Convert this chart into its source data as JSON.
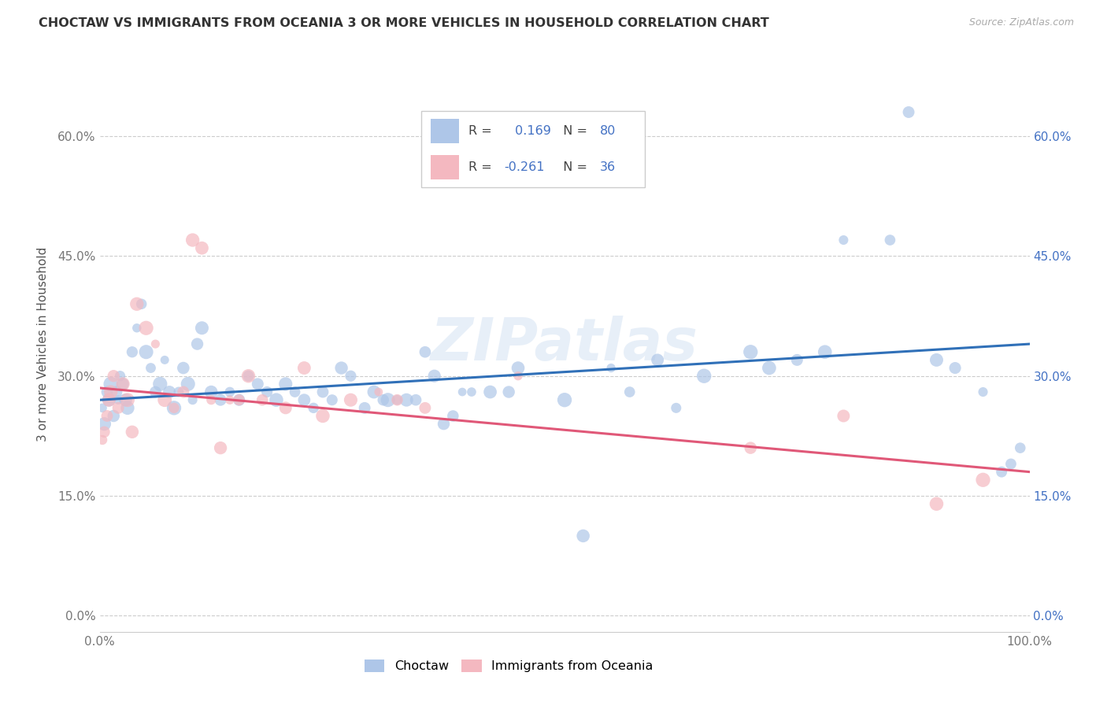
{
  "title": "CHOCTAW VS IMMIGRANTS FROM OCEANIA 3 OR MORE VEHICLES IN HOUSEHOLD CORRELATION CHART",
  "source": "Source: ZipAtlas.com",
  "ylabel": "3 or more Vehicles in Household",
  "xlim": [
    0,
    100
  ],
  "ylim": [
    -2,
    70
  ],
  "ytick_vals": [
    0,
    15,
    30,
    45,
    60
  ],
  "ytick_labels": [
    "0.0%",
    "15.0%",
    "30.0%",
    "45.0%",
    "60.0%"
  ],
  "xtick_vals": [
    0,
    10,
    20,
    30,
    40,
    50,
    60,
    70,
    80,
    90,
    100
  ],
  "xtick_labels": [
    "0.0%",
    "",
    "",
    "",
    "",
    "",
    "",
    "",
    "",
    "",
    "100.0%"
  ],
  "blue_R": 0.169,
  "blue_N": 80,
  "pink_R": -0.261,
  "pink_N": 36,
  "blue_color": "#aec6e8",
  "pink_color": "#f4b8c0",
  "blue_line_color": "#3070b8",
  "pink_line_color": "#e05878",
  "legend_color": "#4472c4",
  "blue_trend_start": 27.0,
  "blue_trend_end": 34.0,
  "pink_trend_start": 28.5,
  "pink_trend_end": 18.0,
  "watermark": "ZIPatlas",
  "blue_scatter_x": [
    0.3,
    0.5,
    0.8,
    1.0,
    1.2,
    1.5,
    1.8,
    2.0,
    2.2,
    2.5,
    2.8,
    3.0,
    3.5,
    4.0,
    4.5,
    5.0,
    5.5,
    6.0,
    6.5,
    7.0,
    7.5,
    8.0,
    8.5,
    9.0,
    9.5,
    10.0,
    10.5,
    11.0,
    12.0,
    13.0,
    14.0,
    15.0,
    16.0,
    17.0,
    18.0,
    19.0,
    20.0,
    21.0,
    22.0,
    23.0,
    24.0,
    25.0,
    26.0,
    27.0,
    28.5,
    29.5,
    30.5,
    31.0,
    32.0,
    33.0,
    34.0,
    35.0,
    36.0,
    37.0,
    38.0,
    39.0,
    40.0,
    42.0,
    44.0,
    45.0,
    50.0,
    52.0,
    55.0,
    57.0,
    60.0,
    62.0,
    65.0,
    70.0,
    72.0,
    75.0,
    78.0,
    80.0,
    85.0,
    87.0,
    90.0,
    92.0,
    95.0,
    97.0,
    98.0,
    99.0
  ],
  "blue_scatter_y": [
    26,
    24,
    28,
    27,
    29,
    25,
    28,
    27,
    30,
    29,
    27,
    26,
    33,
    36,
    39,
    33,
    31,
    28,
    29,
    32,
    28,
    26,
    28,
    31,
    29,
    27,
    34,
    36,
    28,
    27,
    28,
    27,
    30,
    29,
    28,
    27,
    29,
    28,
    27,
    26,
    28,
    27,
    31,
    30,
    26,
    28,
    27,
    27,
    27,
    27,
    27,
    33,
    30,
    24,
    25,
    28,
    28,
    28,
    28,
    31,
    27,
    10,
    31,
    28,
    32,
    26,
    30,
    33,
    31,
    32,
    33,
    47,
    47,
    63,
    32,
    31,
    28,
    18,
    19,
    21
  ],
  "pink_scatter_x": [
    0.3,
    0.5,
    0.8,
    1.0,
    1.2,
    1.5,
    2.0,
    2.5,
    3.0,
    3.5,
    4.0,
    5.0,
    6.0,
    7.0,
    8.0,
    9.0,
    10.0,
    11.0,
    12.0,
    13.0,
    14.0,
    15.0,
    16.0,
    17.5,
    20.0,
    22.0,
    24.0,
    27.0,
    30.0,
    32.0,
    35.0,
    45.0,
    70.0,
    80.0,
    90.0,
    95.0
  ],
  "pink_scatter_y": [
    22,
    23,
    25,
    27,
    28,
    30,
    26,
    29,
    27,
    23,
    39,
    36,
    34,
    27,
    26,
    28,
    47,
    46,
    27,
    21,
    27,
    27,
    30,
    27,
    26,
    31,
    25,
    27,
    28,
    27,
    26,
    30,
    21,
    25,
    14,
    17
  ]
}
